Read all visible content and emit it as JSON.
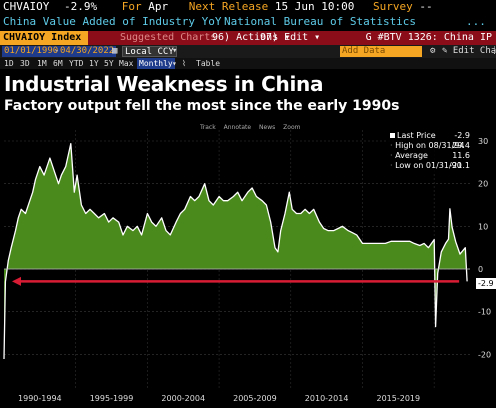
{
  "header": {
    "ticker": "CHVAIOY",
    "last_value": "-2.9%",
    "for_label": "For",
    "for_value": "Apr",
    "next_release_label": "Next Release",
    "next_release_value": "15 Jun 10:00",
    "survey_label": "Survey",
    "survey_value": "--",
    "description": "China Value Added of Industry YoY",
    "source": "National Bureau of Statistics",
    "dots": "..."
  },
  "command_bar": {
    "index_label": "CHVAIOY Index",
    "suggested_charts": "Suggested Charts",
    "actions": "96) Actions ▾",
    "edit": "97) Edit ▾",
    "right_label": "G #BTV 1326: China IP"
  },
  "range_bar": {
    "start_date": "01/01/1990",
    "end_date": "04/30/2022",
    "currency": "Local CCY",
    "add_data": "Add Data",
    "edit_chart": "Edit Chart",
    "periods": [
      "1D",
      "3D",
      "1M",
      "6M",
      "YTD",
      "1Y",
      "5Y",
      "Max"
    ],
    "frequency": "Monthly",
    "table_label": "Table"
  },
  "tools": [
    "Track",
    "Annotate",
    "News",
    "Zoom"
  ],
  "legend": {
    "last_price_label": "Last Price",
    "last_price_value": "-2.9",
    "high_label": "High on 08/31/94",
    "high_value": "29.4",
    "average_label": "Average",
    "average_value": "11.6",
    "low_label": "Low on 01/31/90",
    "low_value": "-21.1"
  },
  "last_badge": "-2.9",
  "colors": {
    "area_fill": "#4a8a1c",
    "line": "#ffffff",
    "arrow": "#d81c34",
    "accent": "#f5a623"
  },
  "chart_data": {
    "type": "area",
    "title": "Industrial Weakness in China",
    "subtitle": "Factory output fell the most since the early 1990s",
    "xlabel": "",
    "ylabel": "",
    "x_tick_labels": [
      "1990-1994",
      "1995-1999",
      "2000-2004",
      "2005-2009",
      "2010-2014",
      "2015-2019"
    ],
    "y_ticks": [
      30,
      20,
      10,
      0,
      -10,
      -20
    ],
    "ylim": [
      -22,
      32
    ],
    "xlim": [
      1990.0,
      2022.5
    ],
    "grid": true,
    "legend_position": "top-right",
    "annotation": "red arrow at the last value extending back to the early 1990s",
    "series": [
      {
        "name": "CHVAIOY Index",
        "x": [
          1990.0,
          1990.1,
          1990.3,
          1990.5,
          1990.8,
          1991.0,
          1991.2,
          1991.5,
          1991.8,
          1992.0,
          1992.2,
          1992.5,
          1992.8,
          1993.0,
          1993.2,
          1993.5,
          1993.8,
          1994.0,
          1994.3,
          1994.66,
          1994.9,
          1995.1,
          1995.4,
          1995.7,
          1996.0,
          1996.3,
          1996.6,
          1997.0,
          1997.3,
          1997.6,
          1998.0,
          1998.3,
          1998.6,
          1999.0,
          1999.3,
          1999.6,
          2000.0,
          2000.3,
          2000.6,
          2001.0,
          2001.3,
          2001.6,
          2002.0,
          2002.3,
          2002.6,
          2003.0,
          2003.3,
          2003.6,
          2004.0,
          2004.3,
          2004.6,
          2005.0,
          2005.3,
          2005.6,
          2006.0,
          2006.3,
          2006.6,
          2007.0,
          2007.3,
          2007.6,
          2008.0,
          2008.3,
          2008.6,
          2008.9,
          2009.1,
          2009.3,
          2009.6,
          2009.9,
          2010.1,
          2010.4,
          2010.7,
          2011.0,
          2011.3,
          2011.6,
          2012.0,
          2012.3,
          2012.6,
          2013.0,
          2013.3,
          2013.6,
          2014.0,
          2014.3,
          2014.6,
          2015.0,
          2015.3,
          2015.6,
          2016.0,
          2016.3,
          2016.6,
          2017.0,
          2017.3,
          2017.6,
          2018.0,
          2018.3,
          2018.6,
          2019.0,
          2019.3,
          2019.6,
          2020.0,
          2020.1,
          2020.25,
          2020.5,
          2020.8,
          2021.0,
          2021.1,
          2021.25,
          2021.5,
          2021.8,
          2022.0,
          2022.17,
          2022.3
        ],
        "values": [
          -21.1,
          -3,
          2,
          5,
          9,
          12,
          14,
          13,
          16,
          18,
          21,
          24,
          22,
          24,
          26,
          23,
          20,
          22,
          24,
          29.4,
          18,
          22,
          15,
          13,
          14,
          13,
          12,
          13,
          11,
          12,
          11,
          8,
          10,
          9,
          10,
          8,
          13,
          11,
          10,
          12,
          9,
          8,
          11,
          13,
          14,
          17,
          16,
          17,
          20,
          16,
          15,
          17,
          16,
          16,
          17,
          18,
          16,
          18,
          19,
          17,
          16,
          15,
          11,
          5,
          4,
          9,
          13,
          18,
          14,
          13,
          13,
          14,
          13,
          14,
          11,
          9.5,
          9,
          9,
          9.5,
          10,
          9,
          8.5,
          8,
          6,
          6,
          6,
          6,
          6,
          6,
          6.5,
          6.5,
          6.5,
          6.5,
          6.5,
          6,
          5.5,
          6,
          5,
          6.9,
          -13.5,
          -1,
          4,
          6,
          7,
          14.1,
          9.8,
          6.4,
          3.5,
          4.3,
          5,
          -2.9
        ]
      }
    ]
  }
}
